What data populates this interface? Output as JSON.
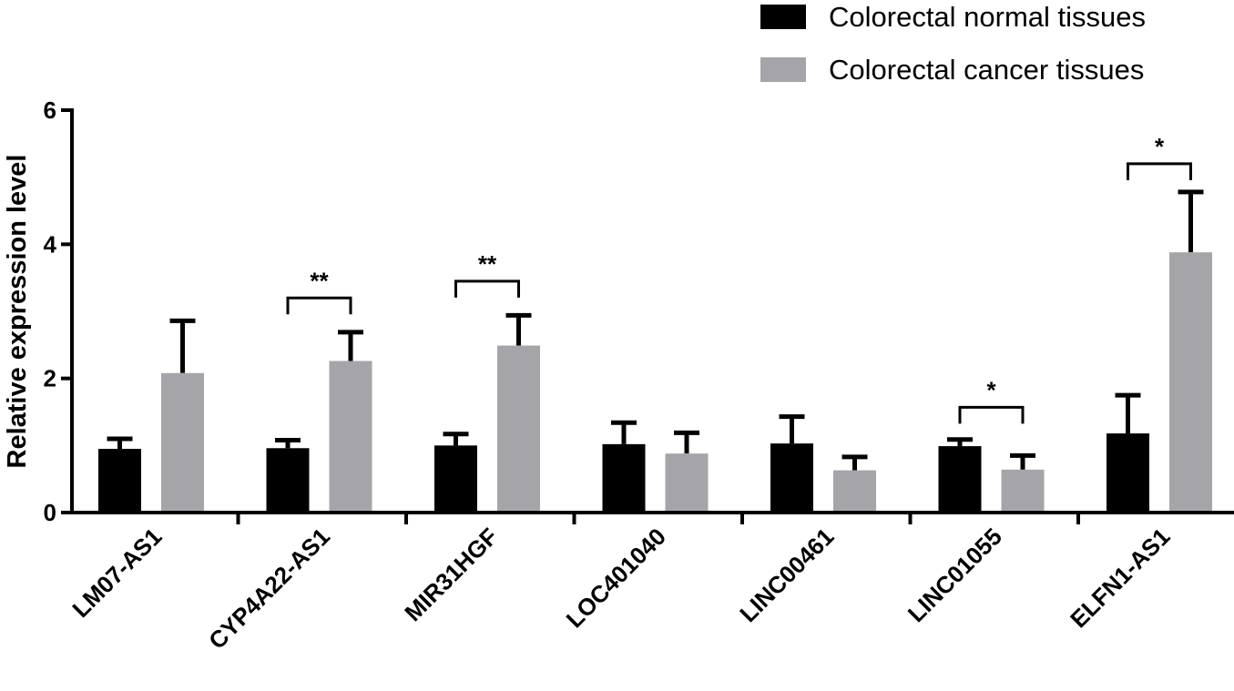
{
  "chart_data": {
    "type": "bar",
    "title": "",
    "xlabel": "",
    "ylabel": "Relative expression level",
    "ylim": [
      0,
      6
    ],
    "yticks": [
      0,
      2,
      4,
      6
    ],
    "categories": [
      "LM07-AS1",
      "CYP4A22-AS1",
      "MIR31HGF",
      "LOC401040",
      "LINC00461",
      "LINC01055",
      "ELFN1-AS1"
    ],
    "series": [
      {
        "name": "Colorectal normal tissues",
        "color": "#000000",
        "values": [
          0.95,
          0.96,
          1.0,
          1.02,
          1.03,
          0.99,
          1.18
        ],
        "error_upper": [
          0.15,
          0.12,
          0.17,
          0.32,
          0.4,
          0.1,
          0.57
        ]
      },
      {
        "name": "Colorectal cancer tissues",
        "color": "#a5a5a9",
        "values": [
          2.08,
          2.26,
          2.49,
          0.88,
          0.63,
          0.64,
          3.88
        ],
        "error_upper": [
          0.78,
          0.43,
          0.45,
          0.31,
          0.2,
          0.21,
          0.9
        ]
      }
    ],
    "significance": [
      {
        "category_index": 1,
        "label": "**",
        "y": 3.2
      },
      {
        "category_index": 2,
        "label": "**",
        "y": 3.45
      },
      {
        "category_index": 5,
        "label": "*",
        "y": 1.57
      },
      {
        "category_index": 6,
        "label": "*",
        "y": 5.2
      }
    ],
    "legend": {
      "position": "top-right"
    }
  }
}
